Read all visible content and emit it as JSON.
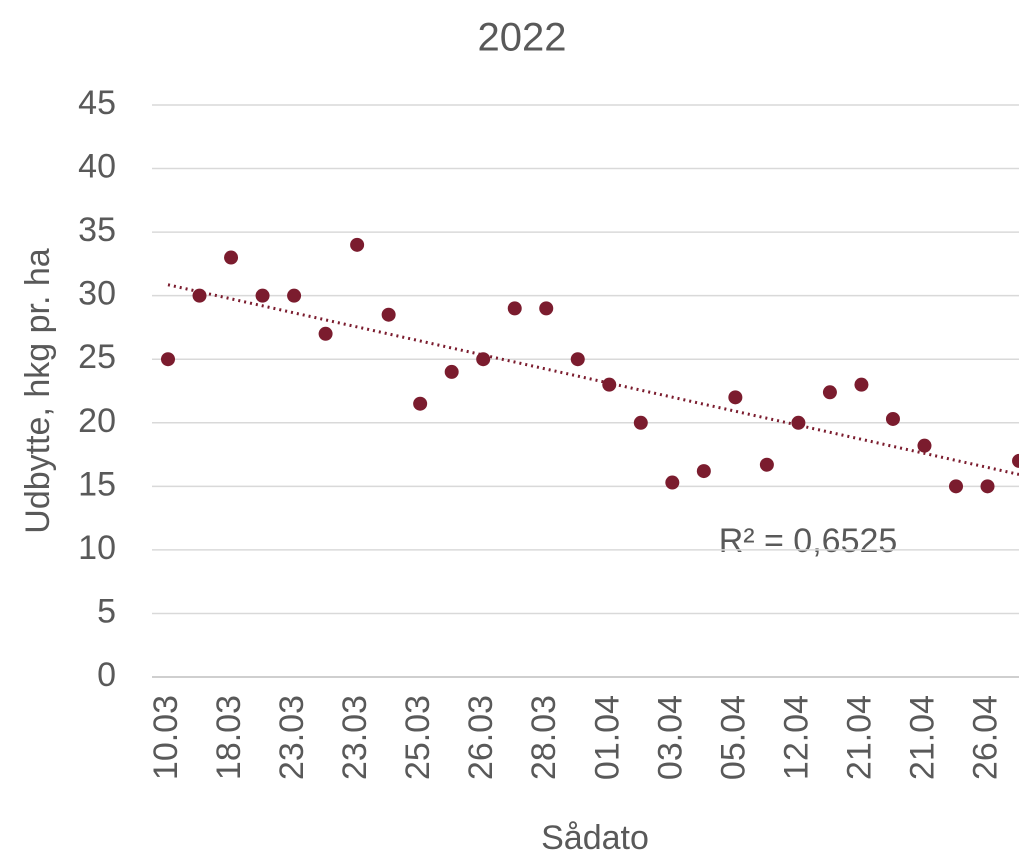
{
  "chart_data": {
    "type": "scatter",
    "title": "2022",
    "x_label": "Sådato",
    "y_label": "Udbytte, hkg pr. ha",
    "categories": [
      "10.03",
      null,
      "18.03",
      null,
      "23.03",
      null,
      "23.03",
      null,
      "25.03",
      null,
      "26.03",
      null,
      "28.03",
      null,
      "01.04",
      null,
      "03.04",
      null,
      "05.04",
      null,
      "12.04",
      null,
      "21.04",
      null,
      "21.04",
      null,
      "26.04",
      null
    ],
    "series": [
      {
        "name": "Udbytte",
        "color": "#7b1c2e",
        "values": [
          25,
          30,
          33,
          30,
          30,
          27,
          34,
          28.5,
          21.5,
          24,
          25,
          29,
          29,
          25,
          23,
          20,
          15.3,
          16.2,
          22,
          16.7,
          20,
          22.4,
          23,
          20.3,
          18.2,
          15,
          15,
          17
        ]
      }
    ],
    "trendline": "linear",
    "trendline_color": "#7b1c2e",
    "annotation": "R² = 0,6525",
    "ylim": [
      0,
      45
    ],
    "yticks": [
      0,
      5,
      10,
      15,
      20,
      25,
      30,
      35,
      40,
      45
    ],
    "grid": true
  }
}
